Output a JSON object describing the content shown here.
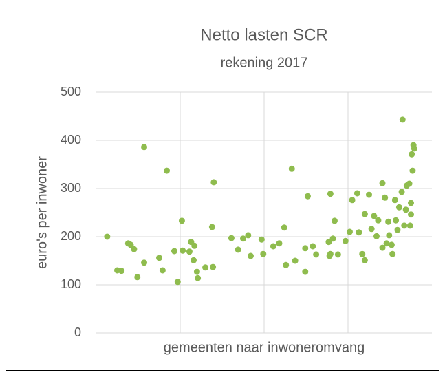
{
  "chart_data": {
    "type": "scatter",
    "title": "Netto lasten SCR",
    "subtitle": "rekening 2017",
    "x_label": "gemeenten naar inwoneromvang",
    "y_label": "euro's per inwoner",
    "color": "#8fbc4e",
    "grid": true,
    "xlim": [
      0,
      4
    ],
    "xticks": [
      1,
      2,
      3
    ],
    "ylim": [
      0,
      500
    ],
    "yticks": [
      0,
      100,
      200,
      300,
      400,
      500
    ],
    "x": [
      0.13,
      0.25,
      0.3,
      0.38,
      0.41,
      0.45,
      0.49,
      0.57,
      0.57,
      0.75,
      0.79,
      0.84,
      0.93,
      0.97,
      1.02,
      1.03,
      1.11,
      1.13,
      1.16,
      1.17,
      1.2,
      1.21,
      1.3,
      1.38,
      1.39,
      1.4,
      1.61,
      1.69,
      1.75,
      1.81,
      1.84,
      1.97,
      1.99,
      2.11,
      2.18,
      2.24,
      2.26,
      2.33,
      2.37,
      2.49,
      2.49,
      2.52,
      2.58,
      2.62,
      2.77,
      2.78,
      2.79,
      2.79,
      2.82,
      2.84,
      2.88,
      2.97,
      3.02,
      3.05,
      3.11,
      3.13,
      3.17,
      3.2,
      3.2,
      3.25,
      3.28,
      3.31,
      3.34,
      3.36,
      3.41,
      3.41,
      3.44,
      3.46,
      3.48,
      3.49,
      3.52,
      3.53,
      3.56,
      3.57,
      3.59,
      3.61,
      3.64,
      3.65,
      3.67,
      3.69,
      3.7,
      3.73,
      3.74,
      3.75,
      3.75,
      3.76,
      3.77,
      3.78,
      3.79
    ],
    "values": [
      200,
      130,
      129,
      186,
      183,
      174,
      116,
      146,
      386,
      156,
      130,
      337,
      170,
      106,
      233,
      171,
      169,
      189,
      151,
      181,
      127,
      114,
      136,
      220,
      137,
      313,
      197,
      173,
      196,
      203,
      160,
      194,
      164,
      180,
      186,
      219,
      141,
      341,
      150,
      176,
      127,
      284,
      180,
      163,
      189,
      160,
      164,
      289,
      196,
      233,
      163,
      191,
      210,
      276,
      290,
      209,
      164,
      151,
      247,
      287,
      216,
      243,
      201,
      234,
      311,
      177,
      281,
      186,
      231,
      203,
      183,
      164,
      276,
      234,
      214,
      261,
      293,
      443,
      223,
      256,
      306,
      310,
      223,
      246,
      270,
      371,
      337,
      390,
      383
    ]
  }
}
